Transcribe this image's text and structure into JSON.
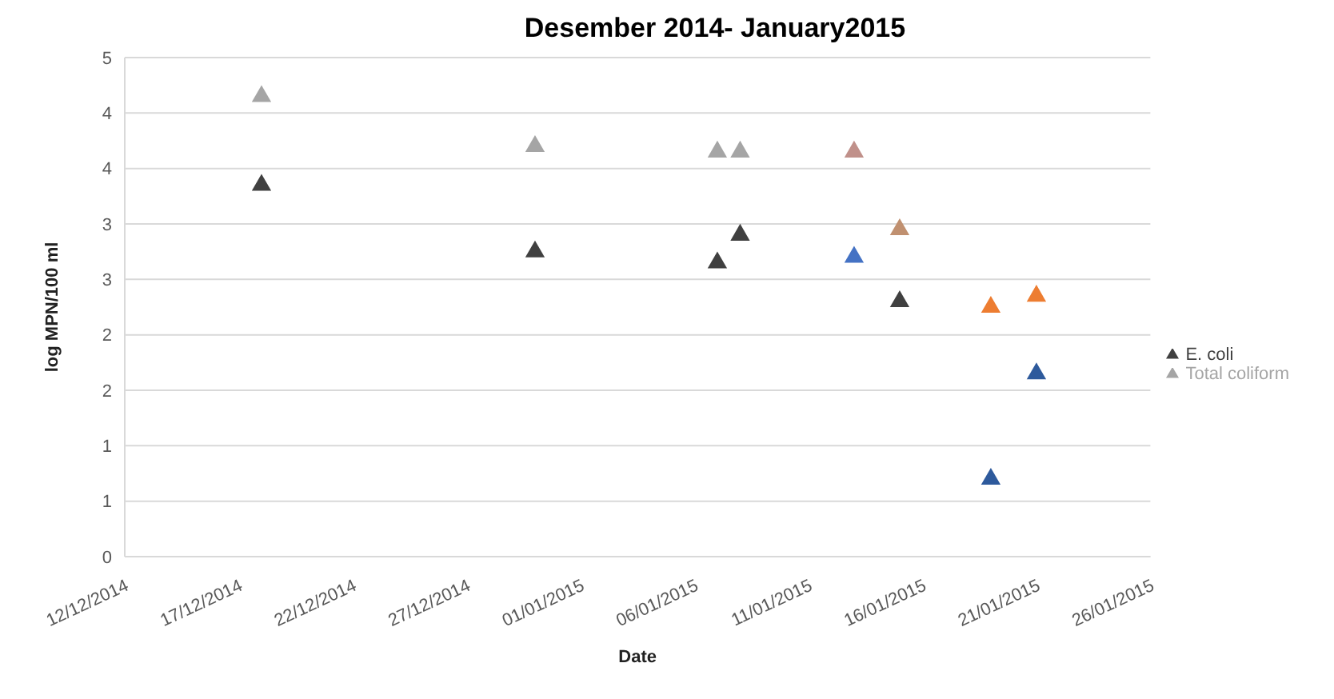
{
  "chart_data": {
    "type": "scatter",
    "title": "Desember 2014- January2015",
    "xlabel": "Date",
    "ylabel": "log MPN/100 ml",
    "x": [
      "2014-12-18",
      "2014-12-30",
      "2015-01-07",
      "2015-01-08",
      "2015-01-13",
      "2015-01-15",
      "2015-01-19",
      "2015-01-21"
    ],
    "series": [
      {
        "name": "Total coliform",
        "color": "#a5a5a5",
        "colors": [
          "#a5a5a5",
          "#a5a5a5",
          "#a5a5a5",
          "#a5a5a5",
          "#c0908a",
          "#c09070",
          "#ed7d31",
          "#ed7d31"
        ],
        "values": [
          4.15,
          3.7,
          3.65,
          3.65,
          3.65,
          2.95,
          2.25,
          2.35
        ]
      },
      {
        "name": "E. coli",
        "color": "#404040",
        "colors": [
          "#404040",
          "#404040",
          "#404040",
          "#404040",
          "#4472c4",
          "#404040",
          "#2e5a9c",
          "#2e5a9c"
        ],
        "values": [
          3.35,
          2.75,
          2.65,
          2.9,
          2.7,
          2.3,
          0.7,
          1.65
        ]
      }
    ],
    "marker": "triangle",
    "xlim": [
      "2014-12-12",
      "2015-01-26"
    ],
    "xticks": [
      {
        "value": "2014-12-12",
        "label": "12/12/2014"
      },
      {
        "value": "2014-12-17",
        "label": "17/12/2014"
      },
      {
        "value": "2014-12-22",
        "label": "22/12/2014"
      },
      {
        "value": "2014-12-27",
        "label": "27/12/2014"
      },
      {
        "value": "2015-01-01",
        "label": "01/01/2015"
      },
      {
        "value": "2015-01-06",
        "label": "06/01/2015"
      },
      {
        "value": "2015-01-11",
        "label": "11/01/2015"
      },
      {
        "value": "2015-01-16",
        "label": "16/01/2015"
      },
      {
        "value": "2015-01-21",
        "label": "21/01/2015"
      },
      {
        "value": "2015-01-26",
        "label": "26/01/2015"
      }
    ],
    "ylim": [
      0,
      4.5
    ],
    "yticks": [
      0,
      {
        "value": 0.5,
        "label": "1"
      },
      1,
      {
        "value": 1.5,
        "label": "2"
      },
      2,
      {
        "value": 2.5,
        "label": "3"
      },
      3,
      {
        "value": 3.5,
        "label": "4"
      },
      4,
      {
        "value": 4.5,
        "label": "5"
      }
    ],
    "grid": "y",
    "legend": "right"
  }
}
